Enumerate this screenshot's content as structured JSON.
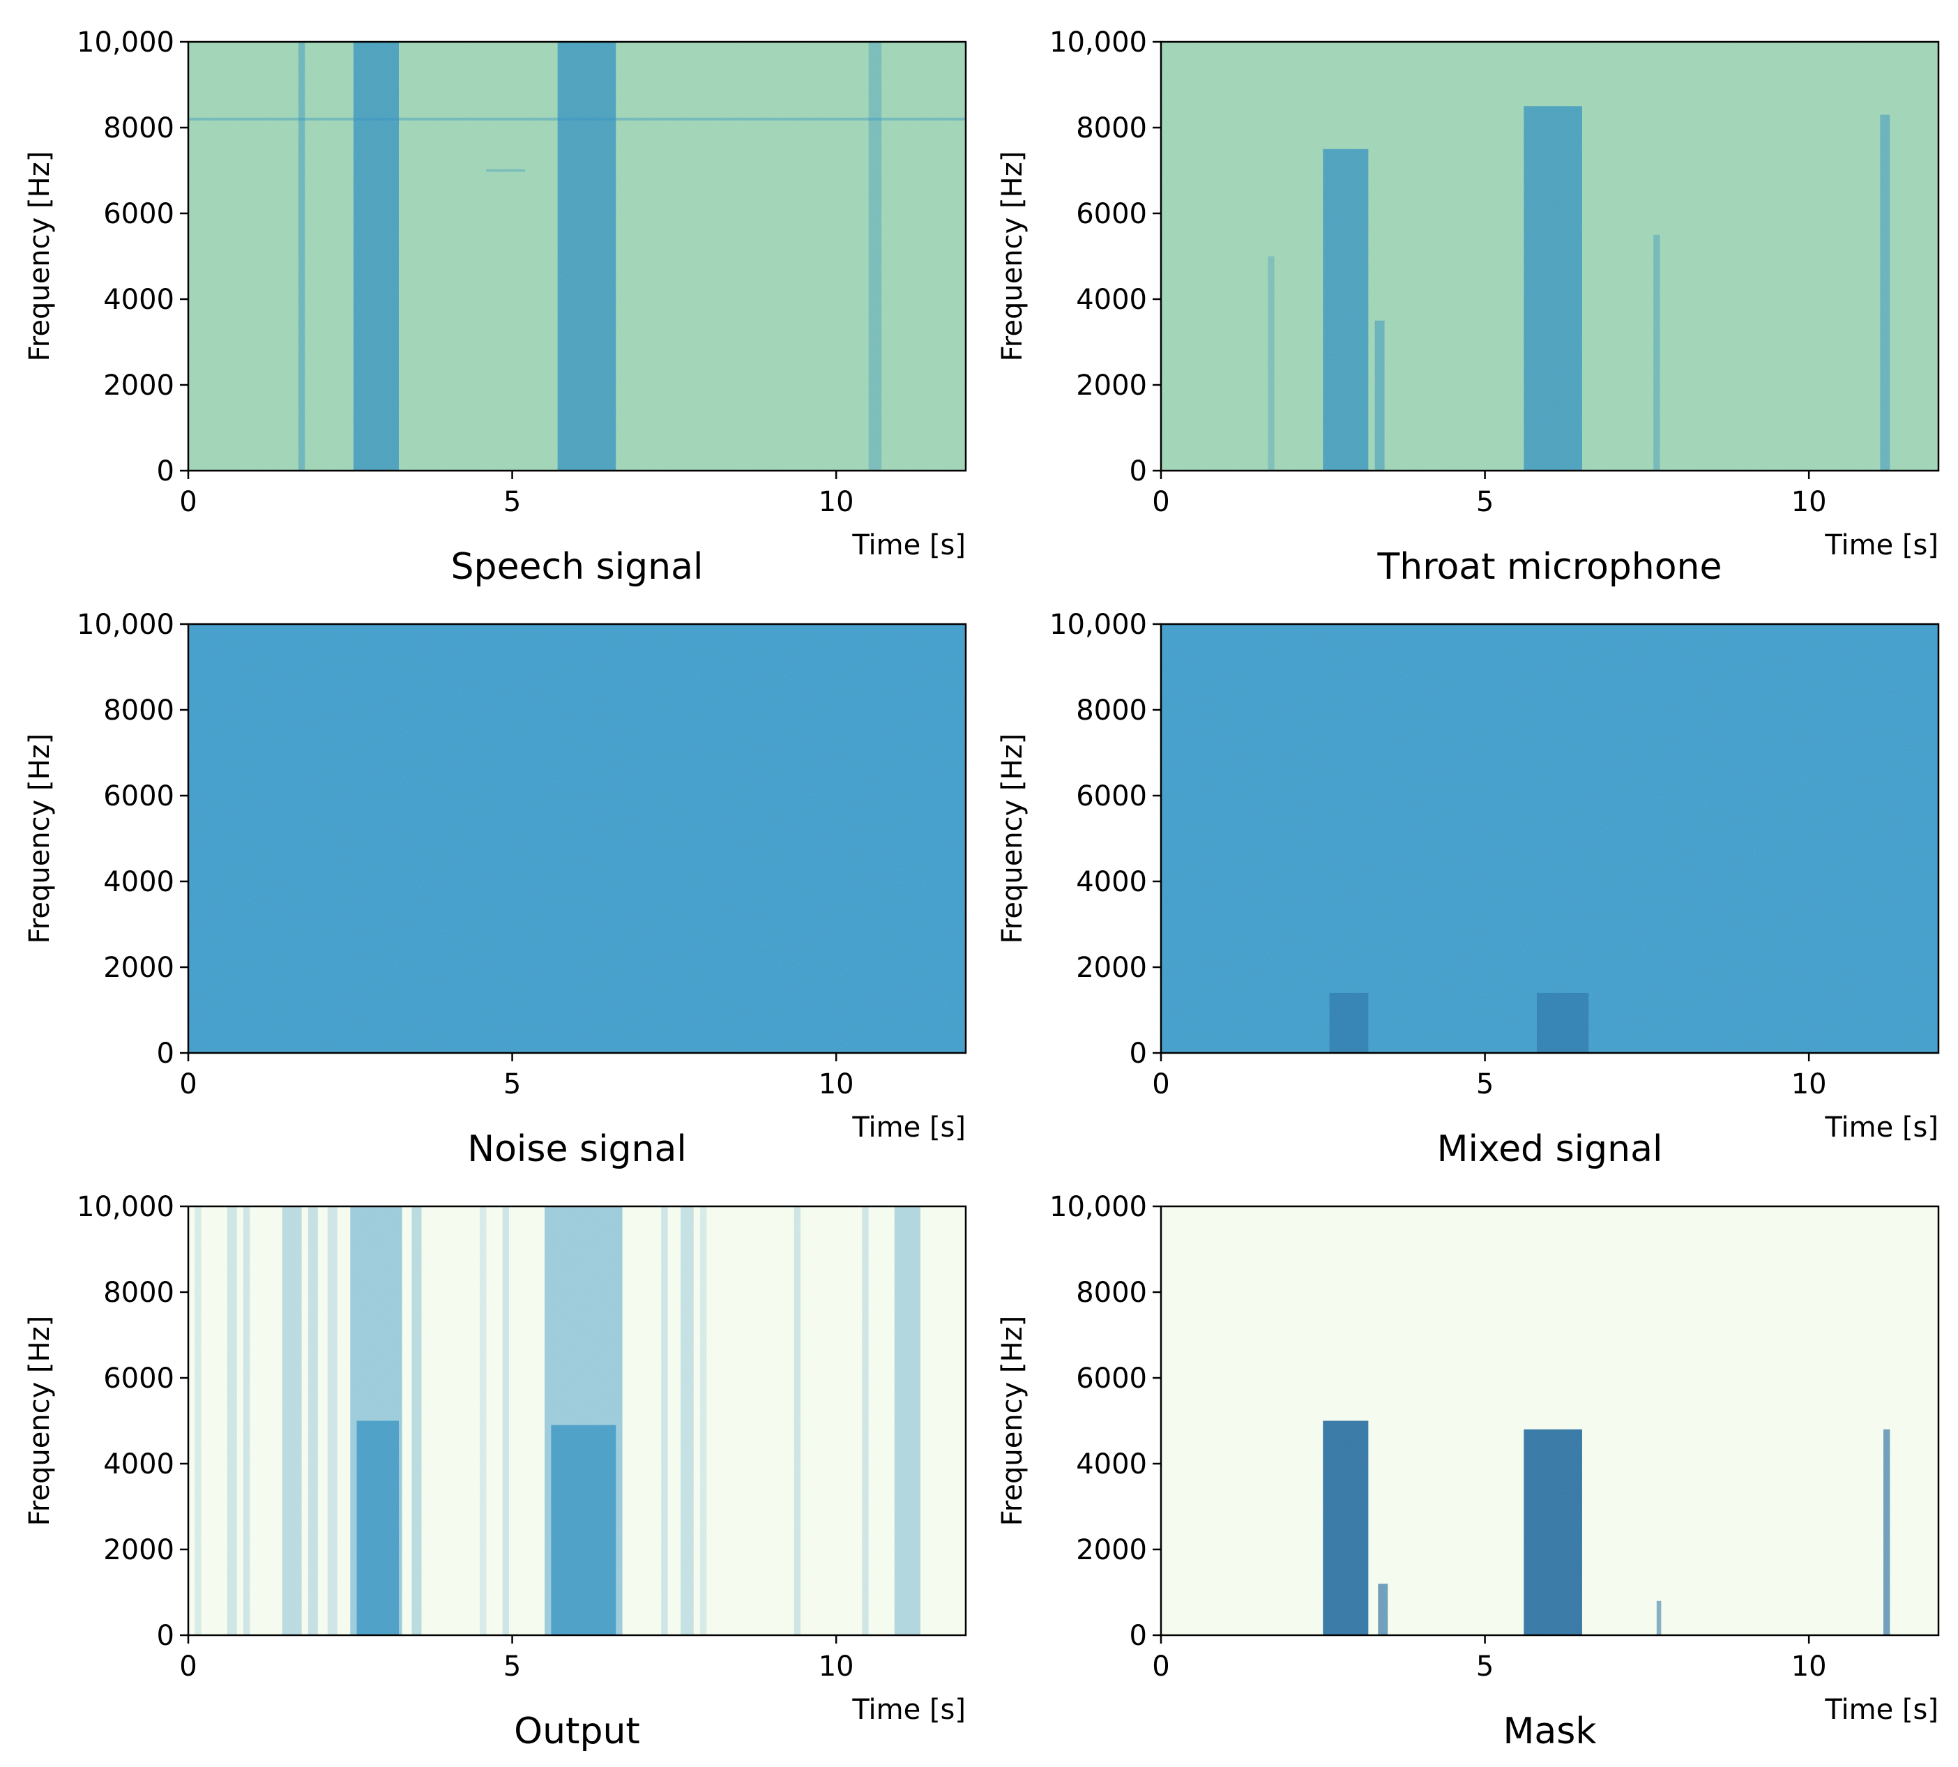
{
  "chart_data": [
    {
      "type": "heatmap",
      "title": "Speech signal",
      "xlabel": "Time [s]",
      "ylabel": "Frequency [Hz]",
      "xlim": [
        0,
        12
      ],
      "ylim": [
        0,
        10000
      ],
      "xticks": [
        0,
        5,
        10
      ],
      "xtick_labels": [
        "0",
        "5",
        "10"
      ],
      "yticks": [
        0,
        2000,
        4000,
        6000,
        8000,
        10000
      ],
      "ytick_labels": [
        "0",
        "2000",
        "4000",
        "6000",
        "8000",
        "10,000"
      ],
      "background": "#9dd3b4",
      "high_color": "#2b8cbe",
      "stripes": [
        {
          "t0": 1.7,
          "t1": 1.8,
          "f_max": 10000,
          "intensity": 0.45
        },
        {
          "t0": 2.55,
          "t1": 3.25,
          "f_max": 10000,
          "intensity": 0.75
        },
        {
          "t0": 5.7,
          "t1": 6.6,
          "f_max": 10000,
          "intensity": 0.75
        },
        {
          "t0": 10.5,
          "t1": 10.7,
          "f_max": 10000,
          "intensity": 0.35
        }
      ],
      "lines": [
        {
          "f": 8200,
          "t0": 0,
          "t1": 12,
          "intensity": 0.4
        },
        {
          "f": 7000,
          "t0": 4.6,
          "t1": 5.2,
          "intensity": 0.35
        }
      ]
    },
    {
      "type": "heatmap",
      "title": "Throat microphone",
      "xlabel": "Time [s]",
      "ylabel": "Frequency [Hz]",
      "xlim": [
        0,
        12
      ],
      "ylim": [
        0,
        10000
      ],
      "xticks": [
        0,
        5,
        10
      ],
      "xtick_labels": [
        "0",
        "5",
        "10"
      ],
      "yticks": [
        0,
        2000,
        4000,
        6000,
        8000,
        10000
      ],
      "ytick_labels": [
        "0",
        "2000",
        "4000",
        "6000",
        "8000",
        "10,000"
      ],
      "background": "#9dd3b4",
      "high_color": "#2b8cbe",
      "stripes": [
        {
          "t0": 1.65,
          "t1": 1.75,
          "f_max": 5000,
          "intensity": 0.3
        },
        {
          "t0": 2.5,
          "t1": 3.2,
          "f_max": 7500,
          "intensity": 0.75
        },
        {
          "t0": 3.3,
          "t1": 3.45,
          "f_max": 3500,
          "intensity": 0.5
        },
        {
          "t0": 5.6,
          "t1": 6.5,
          "f_max": 8500,
          "intensity": 0.75
        },
        {
          "t0": 7.6,
          "t1": 7.7,
          "f_max": 5500,
          "intensity": 0.4
        },
        {
          "t0": 11.1,
          "t1": 11.25,
          "f_max": 8300,
          "intensity": 0.5
        }
      ],
      "lines": []
    },
    {
      "type": "heatmap",
      "title": "Noise signal",
      "xlabel": "Time [s]",
      "ylabel": "Frequency [Hz]",
      "xlim": [
        0,
        12
      ],
      "ylim": [
        0,
        10000
      ],
      "xticks": [
        0,
        5,
        10
      ],
      "xtick_labels": [
        "0",
        "5",
        "10"
      ],
      "yticks": [
        0,
        2000,
        4000,
        6000,
        8000,
        10000
      ],
      "ytick_labels": [
        "0",
        "2000",
        "4000",
        "6000",
        "8000",
        "10,000"
      ],
      "background": "#3d9bc9",
      "high_color": "#2272aa",
      "stripes": [],
      "lines": []
    },
    {
      "type": "heatmap",
      "title": "Mixed signal",
      "xlabel": "Time [s]",
      "ylabel": "Frequency [Hz]",
      "xlim": [
        0,
        12
      ],
      "ylim": [
        0,
        10000
      ],
      "xticks": [
        0,
        5,
        10
      ],
      "xtick_labels": [
        "0",
        "5",
        "10"
      ],
      "yticks": [
        0,
        2000,
        4000,
        6000,
        8000,
        10000
      ],
      "ytick_labels": [
        "0",
        "2000",
        "4000",
        "6000",
        "8000",
        "10,000"
      ],
      "background": "#3d9bc9",
      "high_color": "#1f6aa0",
      "stripes": [
        {
          "t0": 2.6,
          "t1": 3.2,
          "f_max": 1400,
          "intensity": 0.6
        },
        {
          "t0": 5.8,
          "t1": 6.6,
          "f_max": 1400,
          "intensity": 0.6
        }
      ],
      "lines": []
    },
    {
      "type": "heatmap",
      "title": "Output",
      "xlabel": "Time [s]",
      "ylabel": "Frequency [Hz]",
      "xlim": [
        0,
        12
      ],
      "ylim": [
        0,
        10000
      ],
      "xticks": [
        0,
        5,
        10
      ],
      "xtick_labels": [
        "0",
        "5",
        "10"
      ],
      "yticks": [
        0,
        2000,
        4000,
        6000,
        8000,
        10000
      ],
      "ytick_labels": [
        "0",
        "2000",
        "4000",
        "6000",
        "8000",
        "10,000"
      ],
      "background": "#f4fbee",
      "high_color": "#2b8cbe",
      "stripes": [
        {
          "t0": 0.1,
          "t1": 0.2,
          "f_max": 10000,
          "intensity": 0.15
        },
        {
          "t0": 0.6,
          "t1": 0.75,
          "f_max": 10000,
          "intensity": 0.2
        },
        {
          "t0": 0.85,
          "t1": 0.95,
          "f_max": 10000,
          "intensity": 0.2
        },
        {
          "t0": 1.45,
          "t1": 1.75,
          "f_max": 10000,
          "intensity": 0.3
        },
        {
          "t0": 1.85,
          "t1": 2.0,
          "f_max": 10000,
          "intensity": 0.25
        },
        {
          "t0": 2.15,
          "t1": 2.3,
          "f_max": 10000,
          "intensity": 0.2
        },
        {
          "t0": 2.5,
          "t1": 3.3,
          "f_max": 10000,
          "intensity": 0.45
        },
        {
          "t0": 3.45,
          "t1": 3.6,
          "f_max": 10000,
          "intensity": 0.3
        },
        {
          "t0": 4.5,
          "t1": 4.6,
          "f_max": 10000,
          "intensity": 0.15
        },
        {
          "t0": 4.85,
          "t1": 4.95,
          "f_max": 10000,
          "intensity": 0.2
        },
        {
          "t0": 5.5,
          "t1": 6.7,
          "f_max": 10000,
          "intensity": 0.45
        },
        {
          "t0": 7.3,
          "t1": 7.4,
          "f_max": 10000,
          "intensity": 0.2
        },
        {
          "t0": 7.6,
          "t1": 7.8,
          "f_max": 10000,
          "intensity": 0.25
        },
        {
          "t0": 7.9,
          "t1": 8.0,
          "f_max": 10000,
          "intensity": 0.15
        },
        {
          "t0": 9.35,
          "t1": 9.45,
          "f_max": 10000,
          "intensity": 0.2
        },
        {
          "t0": 10.4,
          "t1": 10.5,
          "f_max": 10000,
          "intensity": 0.2
        },
        {
          "t0": 10.9,
          "t1": 11.3,
          "f_max": 10000,
          "intensity": 0.35
        },
        {
          "t0": 2.6,
          "t1": 3.25,
          "f_max": 5000,
          "intensity": 0.75
        },
        {
          "t0": 5.6,
          "t1": 6.6,
          "f_max": 4900,
          "intensity": 0.75
        }
      ],
      "lines": []
    },
    {
      "type": "heatmap",
      "title": "Mask",
      "xlabel": "Time [s]",
      "ylabel": "Frequency [Hz]",
      "xlim": [
        0,
        12
      ],
      "ylim": [
        0,
        10000
      ],
      "xticks": [
        0,
        5,
        10
      ],
      "xtick_labels": [
        "0",
        "5",
        "10"
      ],
      "yticks": [
        0,
        2000,
        4000,
        6000,
        8000,
        10000
      ],
      "ytick_labels": [
        "0",
        "2000",
        "4000",
        "6000",
        "8000",
        "10,000"
      ],
      "background": "#f4fbee",
      "high_color": "#0c5a94",
      "stripes": [
        {
          "t0": 2.5,
          "t1": 3.2,
          "f_max": 5000,
          "intensity": 0.85
        },
        {
          "t0": 3.35,
          "t1": 3.5,
          "f_max": 1200,
          "intensity": 0.6
        },
        {
          "t0": 5.6,
          "t1": 6.5,
          "f_max": 4800,
          "intensity": 0.85
        },
        {
          "t0": 7.65,
          "t1": 7.72,
          "f_max": 800,
          "intensity": 0.5
        },
        {
          "t0": 11.15,
          "t1": 11.25,
          "f_max": 4800,
          "intensity": 0.6
        }
      ],
      "lines": []
    }
  ]
}
